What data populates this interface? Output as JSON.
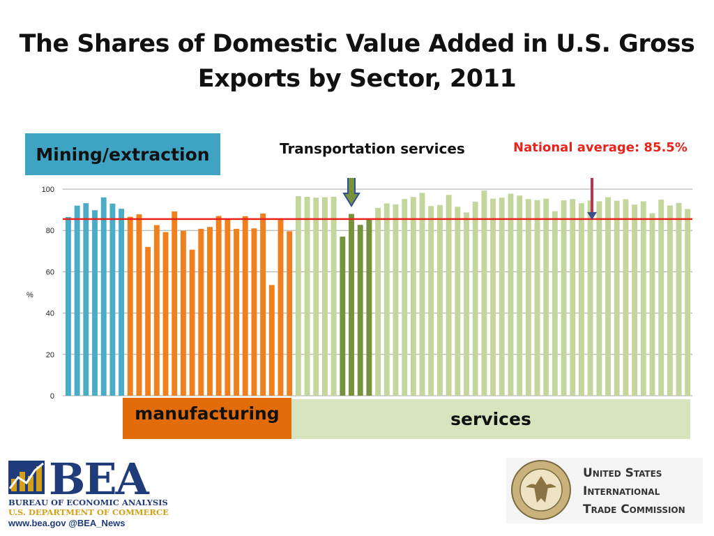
{
  "title": "The Shares of Domestic Value Added in U.S. Gross Exports by Sector, 2011",
  "labels": {
    "mining": "Mining/extraction",
    "manufacturing": "manufacturing",
    "services": "services",
    "transport": "Transportation services",
    "national_avg": "National average: 85.5%"
  },
  "colors": {
    "mining": "#4aacc6",
    "manufacturing": "#f07f1d",
    "services": "#c3d69b",
    "transport": "#76923c",
    "avg_line": "#e8231c",
    "arrow_transport": "#76923c",
    "arrow_avg": "#c0314d"
  },
  "footer": {
    "bea_text": "BEA",
    "bea_line1": "BUREAU OF ECONOMIC ANALYSIS",
    "bea_line2": "U.S. DEPARTMENT OF COMMERCE",
    "bea_line3": "www.bea.gov    @BEA_News",
    "itc_line1": "United States",
    "itc_line2": "International",
    "itc_line3": "Trade Commission"
  },
  "chart_data": {
    "type": "bar",
    "ylabel": "%",
    "ylim": [
      0,
      100
    ],
    "yticks": [
      0,
      20,
      40,
      60,
      80,
      100
    ],
    "grid": true,
    "reference_line": {
      "value": 85.5,
      "label": "National average: 85.5%"
    },
    "groups": [
      {
        "name": "Mining/extraction",
        "color_key": "mining",
        "values": [
          86.5,
          92,
          93.2,
          89.8,
          96,
          93,
          90.5
        ]
      },
      {
        "name": "manufacturing",
        "color_key": "manufacturing",
        "values": [
          86.6,
          87.8,
          72,
          82.6,
          79.2,
          89.2,
          79.8,
          70.7,
          80.8,
          81.7,
          87,
          85.7,
          80.8,
          86.9,
          81,
          88.2,
          53.6,
          85.6,
          79.6
        ]
      },
      {
        "name": "services-a",
        "color_key": "services",
        "values": [
          96.6,
          96.3,
          95.9,
          96.1,
          96.3
        ]
      },
      {
        "name": "Transportation services",
        "color_key": "transport",
        "values": [
          77,
          88,
          82.7,
          85.6
        ]
      },
      {
        "name": "services-b",
        "color_key": "services",
        "values": [
          90.9,
          93.1,
          92.6,
          95.2,
          96.2,
          98.2,
          91.8,
          92.3,
          97.2,
          91.5,
          88.7,
          93.9,
          99.3,
          95.4,
          95.9,
          97.8,
          96.9,
          95.2,
          94.7,
          95.4,
          89.3,
          94.6,
          95.2,
          93.2,
          94.5,
          94.1,
          96.1,
          94.4,
          95.1,
          92.5,
          94.1,
          88.3,
          94.9,
          92.1,
          93.3,
          90.4
        ]
      }
    ]
  }
}
